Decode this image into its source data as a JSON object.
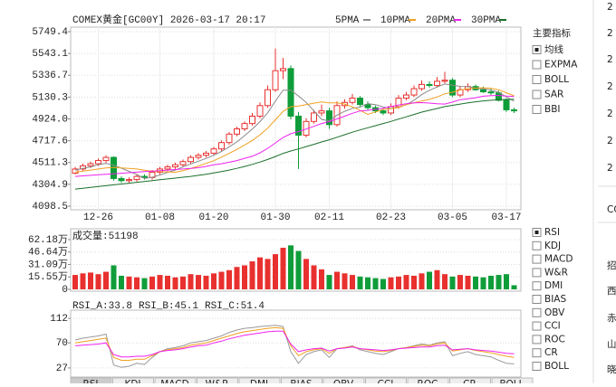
{
  "chart_data": [
    {
      "type": "candlestick",
      "title": "COMEX黄金[GC00Y] 2026-03-17 20:17",
      "categories": [
        null,
        null,
        null,
        "12-26",
        null,
        null,
        null,
        null,
        null,
        null,
        null,
        "01-08",
        null,
        null,
        null,
        null,
        null,
        null,
        "01-20",
        null,
        null,
        null,
        null,
        null,
        null,
        null,
        "01-30",
        null,
        null,
        null,
        null,
        null,
        null,
        "02-11",
        null,
        null,
        null,
        null,
        null,
        null,
        null,
        "02-23",
        null,
        null,
        null,
        null,
        null,
        null,
        null,
        "03-05",
        null,
        null,
        null,
        null,
        null,
        null,
        "03-17",
        null
      ],
      "open": [
        4410,
        4450,
        4480,
        4500,
        4530,
        4560,
        4360,
        4340,
        4350,
        4380,
        4370,
        4420,
        4450,
        4470,
        4490,
        4520,
        4560,
        4580,
        4600,
        4640,
        4700,
        4780,
        4830,
        4880,
        4950,
        5050,
        5200,
        5380,
        5400,
        4950,
        4770,
        4900,
        4980,
        5000,
        4870,
        5050,
        5080,
        5120,
        5060,
        5030,
        5000,
        4980,
        5040,
        5120,
        5150,
        5210,
        5250,
        5240,
        5280,
        5290,
        5150,
        5200,
        5230,
        5200,
        5180,
        5170,
        5100,
        5010
      ],
      "high": [
        4470,
        4500,
        4520,
        4550,
        4580,
        4570,
        4380,
        4370,
        4400,
        4400,
        4440,
        4470,
        4490,
        4510,
        4540,
        4580,
        4600,
        4620,
        4660,
        4720,
        4800,
        4850,
        4900,
        4980,
        5080,
        5240,
        5590,
        5500,
        5430,
        4990,
        4930,
        5010,
        5060,
        5030,
        5090,
        5110,
        5160,
        5140,
        5090,
        5050,
        5020,
        5070,
        5150,
        5180,
        5240,
        5290,
        5280,
        5320,
        5370,
        5310,
        5230,
        5260,
        5250,
        5230,
        5210,
        5190,
        5120,
        5030
      ],
      "low": [
        4400,
        4430,
        4460,
        4480,
        4510,
        4340,
        4320,
        4320,
        4330,
        4350,
        4350,
        4400,
        4430,
        4450,
        4470,
        4500,
        4540,
        4560,
        4580,
        4620,
        4680,
        4760,
        4810,
        4860,
        4930,
        5030,
        5180,
        5300,
        4920,
        4450,
        4750,
        4880,
        4950,
        4830,
        4850,
        5020,
        5060,
        5040,
        5010,
        4980,
        4960,
        4960,
        5020,
        5100,
        5130,
        5190,
        5220,
        5220,
        5260,
        5130,
        5130,
        5180,
        5190,
        5170,
        5150,
        5090,
        4990,
        4980
      ],
      "close": [
        4450,
        4480,
        4500,
        4530,
        4560,
        4360,
        4340,
        4350,
        4380,
        4370,
        4420,
        4450,
        4470,
        4490,
        4520,
        4560,
        4580,
        4600,
        4640,
        4700,
        4780,
        4830,
        4880,
        4950,
        5050,
        5200,
        5380,
        5400,
        4950,
        4770,
        4900,
        4980,
        5000,
        4870,
        5050,
        5080,
        5120,
        5060,
        5030,
        5000,
        4980,
        5040,
        5120,
        5150,
        5210,
        5250,
        5240,
        5280,
        5290,
        5150,
        5200,
        5230,
        5200,
        5180,
        5170,
        5100,
        5010,
        5000
      ],
      "up_color": "#e8312f",
      "down_color": "#0f9d3a",
      "series": [
        {
          "name": "5PMA",
          "color": "#8a8a8a",
          "values": [
            4440,
            4455,
            4470,
            4490,
            4504,
            4486,
            4458,
            4428,
            4398,
            4360,
            4372,
            4394,
            4418,
            4440,
            4470,
            4498,
            4524,
            4550,
            4580,
            4616,
            4660,
            4706,
            4766,
            4828,
            4898,
            4982,
            5092,
            5196,
            5196,
            5140,
            5080,
            5000,
            4920,
            4904,
            4960,
            4996,
            5024,
            5036,
            5068,
            5058,
            5038,
            5022,
            5034,
            5058,
            5100,
            5154,
            5194,
            5226,
            5254,
            5242,
            5232,
            5230,
            5214,
            5210,
            5196,
            5176,
            5132,
            5092
          ]
        },
        {
          "name": "10PMA",
          "color": "#f0a020",
          "values": [
            4420,
            4430,
            4440,
            4450,
            4460,
            4465,
            4460,
            4455,
            4450,
            4438,
            4429,
            4426,
            4423,
            4419,
            4434,
            4454,
            4478,
            4503,
            4529,
            4562,
            4598,
            4636,
            4677,
            4720,
            4773,
            4837,
            4915,
            4995,
            5039,
            5046,
            5058,
            5073,
            5084,
            5076,
            5076,
            5064,
            5038,
            5004,
            4967,
            4990,
            5014,
            5020,
            5032,
            5060,
            5076,
            5093,
            5109,
            5132,
            5161,
            5176,
            5198,
            5210,
            5216,
            5218,
            5214,
            5199,
            5171,
            5143
          ]
        },
        {
          "name": "20PMA",
          "color": "#ee22ee",
          "values": [
            4380,
            4385,
            4390,
            4395,
            4400,
            4405,
            4410,
            4415,
            4420,
            4425,
            4430,
            4435,
            4440,
            4445,
            4450,
            4455,
            4462,
            4475,
            4490,
            4500,
            4514,
            4530,
            4551,
            4570,
            4603,
            4645,
            4696,
            4749,
            4784,
            4804,
            4828,
            4854,
            4880,
            4898,
            4924,
            4950,
            4977,
            4999,
            5005,
            5015,
            5026,
            5040,
            5056,
            5068,
            5076,
            5078,
            5074,
            5068,
            5064,
            5083,
            5106,
            5115,
            5124,
            5139,
            5145,
            5146,
            5140,
            5137
          ]
        },
        {
          "name": "30PMA",
          "color": "#1a6f2a",
          "values": [
            4260,
            4268,
            4276,
            4284,
            4292,
            4300,
            4308,
            4316,
            4324,
            4332,
            4340,
            4348,
            4356,
            4364,
            4372,
            4380,
            4390,
            4400,
            4412,
            4425,
            4440,
            4456,
            4474,
            4494,
            4516,
            4540,
            4568,
            4598,
            4620,
            4640,
            4662,
            4684,
            4706,
            4726,
            4750,
            4774,
            4798,
            4820,
            4840,
            4860,
            4880,
            4900,
            4922,
            4944,
            4966,
            4988,
            5005,
            5022,
            5040,
            5052,
            5064,
            5076,
            5086,
            5094,
            5100,
            5105,
            5108,
            5110
          ]
        }
      ],
      "ylim": [
        4098.5,
        5749.4
      ],
      "yticks": [
        4098.5,
        4304.9,
        4511.3,
        4717.6,
        {
          "value": 4924,
          "label": "4924.0"
        },
        5130.3,
        5336.7,
        5543.1,
        5749.4
      ],
      "grid": true
    },
    {
      "type": "bar",
      "label": "成交量:51198",
      "values": [
        18,
        20,
        21,
        19,
        22,
        30,
        17,
        16,
        15,
        14,
        16,
        18,
        17,
        15,
        16,
        19,
        18,
        17,
        20,
        22,
        24,
        28,
        30,
        35,
        40,
        38,
        44,
        52,
        55,
        48,
        38,
        30,
        25,
        18,
        22,
        20,
        18,
        16,
        15,
        14,
        13,
        15,
        16,
        18,
        17,
        20,
        22,
        24,
        19,
        16,
        18,
        17,
        16,
        15,
        17,
        18,
        19,
        5.12
      ],
      "up_color": "#e8312f",
      "down_color": "#0f9d3a",
      "ylim": [
        0,
        62.18
      ],
      "yticks": [
        0,
        {
          "value": 15.55,
          "label": "15.55万"
        },
        {
          "value": 31.09,
          "label": "31.09万"
        },
        {
          "value": 46.64,
          "label": "46.64万"
        },
        {
          "value": 62.18,
          "label": "62.18万"
        }
      ],
      "grid": true
    },
    {
      "type": "line",
      "series": [
        {
          "label": "RSI_A:33.8",
          "color": "#9a9a9a",
          "values": [
            75,
            78,
            80,
            82,
            85,
            32,
            28,
            30,
            35,
            33,
            45,
            55,
            60,
            62,
            65,
            70,
            72,
            74,
            78,
            82,
            88,
            92,
            95,
            96,
            98,
            99,
            100,
            98,
            55,
            35,
            50,
            55,
            58,
            45,
            60,
            62,
            65,
            58,
            55,
            52,
            50,
            55,
            60,
            62,
            65,
            68,
            66,
            70,
            72,
            48,
            52,
            55,
            50,
            48,
            46,
            40,
            35,
            33.8
          ]
        },
        {
          "label": "RSI_B:45.1",
          "color": "#f0a020",
          "values": [
            70,
            72,
            74,
            76,
            78,
            45,
            40,
            40,
            42,
            42,
            48,
            55,
            58,
            60,
            62,
            66,
            68,
            70,
            74,
            78,
            82,
            86,
            89,
            91,
            93,
            95,
            96,
            95,
            65,
            48,
            55,
            58,
            60,
            52,
            60,
            62,
            64,
            60,
            58,
            56,
            55,
            57,
            60,
            62,
            64,
            66,
            65,
            68,
            70,
            56,
            58,
            60,
            57,
            55,
            53,
            50,
            47,
            45.1
          ]
        },
        {
          "label": "RSI_C:51.4",
          "color": "#ee22ee",
          "values": [
            65,
            66,
            67,
            68,
            70,
            50,
            46,
            46,
            47,
            47,
            50,
            55,
            57,
            58,
            60,
            63,
            65,
            66,
            70,
            73,
            77,
            80,
            83,
            85,
            87,
            89,
            90,
            90,
            68,
            55,
            58,
            60,
            61,
            56,
            60,
            61,
            63,
            60,
            59,
            58,
            57,
            58,
            60,
            61,
            62,
            63,
            63,
            65,
            66,
            58,
            59,
            60,
            58,
            57,
            56,
            54,
            52,
            51.4
          ]
        }
      ],
      "ylim": [
        14.5,
        123
      ],
      "yticks": [
        27,
        70,
        112
      ],
      "grid": true
    }
  ],
  "main_menu": {
    "title": "主要指标",
    "items": [
      {
        "label": "均线",
        "checked": true
      },
      {
        "label": "EXPMA",
        "checked": false
      },
      {
        "label": "BOLL",
        "checked": false
      },
      {
        "label": "SAR",
        "checked": false
      },
      {
        "label": "BBI",
        "checked": false
      }
    ]
  },
  "sub_menu": {
    "items": [
      {
        "label": "RSI",
        "checked": true
      },
      {
        "label": "KDJ",
        "checked": false
      },
      {
        "label": "MACD",
        "checked": false
      },
      {
        "label": "W&R",
        "checked": false
      },
      {
        "label": "DMI",
        "checked": false
      },
      {
        "label": "BIAS",
        "checked": false
      },
      {
        "label": "OBV",
        "checked": false
      },
      {
        "label": "CCI",
        "checked": false
      },
      {
        "label": "ROC",
        "checked": false
      },
      {
        "label": "CR",
        "checked": false
      },
      {
        "label": "BOLL",
        "checked": false
      }
    ]
  },
  "tabs": [
    "RSI",
    "KDJ",
    "MACD",
    "W&R",
    "DMI",
    "BIAS",
    "OBV",
    "CCI",
    "ROC",
    "CR",
    "BOLL"
  ],
  "side_strip": [
    "2",
    "2",
    "2",
    "2",
    "2",
    "2",
    "2",
    "CO",
    "招",
    "西",
    "赤",
    "山",
    "晓"
  ]
}
